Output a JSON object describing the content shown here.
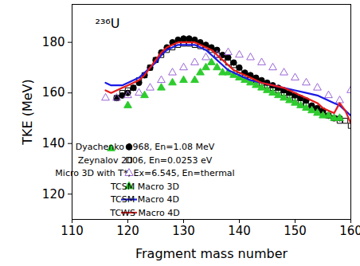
{
  "chart_data": {
    "type": "line",
    "annotation": "²³⁶U",
    "x_label": "Fragment mass number",
    "y_label": "TKE (MeV)",
    "xlim": [
      110,
      160
    ],
    "xticks": [
      110,
      120,
      130,
      140,
      150,
      160
    ],
    "ylim": [
      110,
      195
    ],
    "yticks": [
      120,
      140,
      160,
      180
    ],
    "grid": false,
    "legend": "bottom",
    "series": [
      {
        "name": "Dyachenko 1968, En=1.08 MeV",
        "type": "scatter",
        "marker": "circle",
        "color": "#000000",
        "x": [
          118,
          119,
          120,
          121,
          122,
          123,
          124,
          125,
          126,
          127,
          128,
          129,
          130,
          131,
          132,
          133,
          134,
          135,
          136,
          137,
          138,
          139,
          140,
          141,
          142,
          143,
          144,
          145,
          146,
          147,
          148,
          149,
          150,
          151,
          152,
          153,
          154,
          155,
          156,
          157,
          158
        ],
        "values": [
          158,
          159,
          160,
          162,
          164,
          167,
          170,
          173,
          176,
          178,
          180,
          181,
          181.5,
          181.5,
          181,
          180,
          179,
          178,
          177,
          175,
          174,
          172,
          170,
          168,
          167,
          166,
          165,
          164,
          163,
          162,
          161,
          160,
          159,
          158,
          157,
          155,
          154,
          153,
          151,
          150,
          150
        ]
      },
      {
        "name": "Zeynalov 2006, En=0.0253 eV",
        "type": "scatter",
        "marker": "open-square",
        "color": "#000000",
        "x": [
          118,
          119,
          120,
          121,
          122,
          123,
          124,
          125,
          126,
          127,
          128,
          129,
          130,
          131,
          132,
          133,
          134,
          135,
          136,
          137,
          138,
          139,
          140,
          141,
          142,
          143,
          144,
          145,
          146,
          147,
          148,
          149,
          150,
          151,
          152,
          153,
          154,
          155,
          156,
          157,
          158,
          159,
          160
        ],
        "values": [
          158,
          160,
          161,
          162,
          165,
          167,
          170,
          173,
          175,
          177,
          178,
          179,
          179.5,
          179.5,
          179,
          178.5,
          178,
          177,
          175,
          174,
          172,
          171,
          169,
          167,
          166,
          165,
          164,
          163,
          162,
          161,
          160,
          159,
          158,
          156,
          155,
          154,
          153,
          152,
          151,
          150,
          149,
          149,
          147
        ]
      },
      {
        "name": "Micro 3D with T*, Ex=6.545, En=thermal",
        "type": "scatter",
        "marker": "open-triangle",
        "color": "#9a66d6",
        "x": [
          116,
          118,
          120,
          122,
          124,
          126,
          128,
          130,
          132,
          134,
          136,
          138,
          140,
          142,
          144,
          146,
          148,
          150,
          152,
          154,
          156,
          158,
          160
        ],
        "values": [
          158,
          158,
          159,
          160,
          162,
          165,
          168,
          170,
          172,
          174,
          175,
          176,
          175,
          174,
          172,
          170,
          168,
          166,
          164,
          162,
          159,
          157,
          161
        ]
      },
      {
        "name": "TCSM Macro 3D",
        "type": "scatter",
        "marker": "triangle",
        "color": "#2ecc2e",
        "x": [
          117,
          120,
          123,
          126,
          128,
          130,
          132,
          133,
          134,
          135,
          136,
          137,
          138,
          139,
          140,
          141,
          142,
          143,
          144,
          145,
          146,
          147,
          148,
          149,
          150,
          151,
          152,
          153,
          154,
          155,
          156,
          157,
          158
        ],
        "values": [
          138,
          155,
          159,
          162,
          164,
          165,
          165,
          168,
          170,
          172,
          170,
          168,
          168,
          167,
          166,
          165,
          164,
          163,
          162,
          161,
          160,
          159,
          158,
          157,
          156,
          155,
          154,
          153,
          152,
          151,
          151,
          150,
          150
        ]
      },
      {
        "name": "TCSM Macro 4D",
        "type": "line",
        "line_style": "solid",
        "color": "#1a1ae6",
        "x": [
          116,
          117,
          118,
          119,
          120,
          121,
          122,
          123,
          124,
          125,
          126,
          127,
          128,
          129,
          130,
          131,
          132,
          133,
          134,
          135,
          136,
          137,
          138,
          140,
          142,
          144,
          146,
          148,
          150,
          152,
          154,
          156,
          157,
          158,
          159,
          160
        ],
        "values": [
          164,
          163,
          163,
          163,
          164,
          165,
          166,
          168,
          170,
          172,
          175,
          177,
          178,
          179,
          179,
          179,
          179,
          178,
          177,
          175,
          173,
          171,
          169,
          167,
          165,
          164,
          163,
          162,
          161,
          160,
          159,
          157,
          156,
          155,
          153,
          151
        ]
      },
      {
        "name": "TCWS Macro 4D",
        "type": "line",
        "line_style": "solid",
        "color": "#e61a1a",
        "x": [
          116,
          117,
          118,
          119,
          120,
          121,
          122,
          123,
          124,
          125,
          126,
          127,
          128,
          129,
          130,
          131,
          132,
          133,
          134,
          135,
          136,
          137,
          138,
          139,
          140,
          142,
          144,
          146,
          148,
          150,
          152,
          154,
          155,
          156,
          157,
          158,
          159,
          160
        ],
        "values": [
          161,
          160,
          161,
          162,
          163,
          164,
          165,
          167,
          170,
          173,
          176,
          178,
          179,
          180,
          180,
          180,
          180,
          179,
          178,
          177,
          175,
          173,
          171,
          169,
          168,
          166,
          164,
          163,
          162,
          160,
          158,
          156,
          154,
          153,
          152,
          156,
          153,
          148
        ]
      }
    ]
  }
}
